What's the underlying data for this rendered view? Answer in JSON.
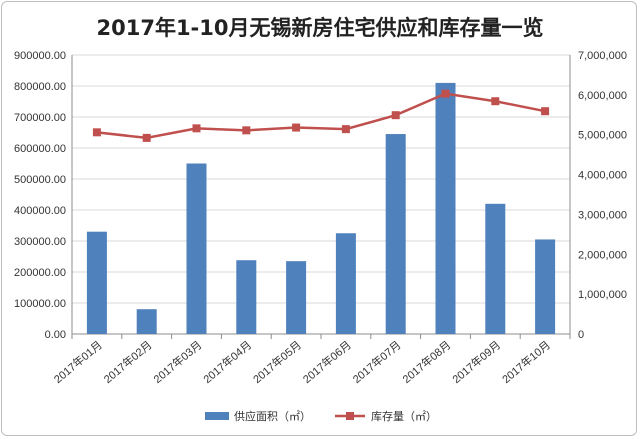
{
  "chart_data": {
    "type": "bar",
    "title": "2017年1-10月无锡新房住宅供应和库存量一览",
    "categories": [
      "2017年01月",
      "2017年02月",
      "2017年03月",
      "2017年04月",
      "2017年05月",
      "2017年06月",
      "2017年07月",
      "2017年08月",
      "2017年09月",
      "2017年10月"
    ],
    "series": [
      {
        "name": "供应面积（㎡）",
        "type": "bar",
        "axis": "left",
        "color": "#4f81bd",
        "values": [
          330000,
          80000,
          550000,
          238000,
          235000,
          325000,
          645000,
          810000,
          420000,
          305000
        ]
      },
      {
        "name": "库存量（㎡）",
        "type": "line",
        "axis": "right",
        "color": "#c0504d",
        "values": [
          5060000,
          4920000,
          5160000,
          5110000,
          5180000,
          5140000,
          5490000,
          6030000,
          5840000,
          5590000
        ]
      }
    ],
    "y_left": {
      "range": [
        0,
        900000
      ],
      "ticks": [
        "0.00",
        "100000.00",
        "200000.00",
        "300000.00",
        "400000.00",
        "500000.00",
        "600000.00",
        "700000.00",
        "800000.00",
        "900000.00"
      ]
    },
    "y_right": {
      "range": [
        0,
        7000000
      ],
      "ticks": [
        "0",
        "1,000,000",
        "2,000,000",
        "3,000,000",
        "4,000,000",
        "5,000,000",
        "6,000,000",
        "7,000,000"
      ]
    },
    "grid": true,
    "legend": "bottom"
  }
}
